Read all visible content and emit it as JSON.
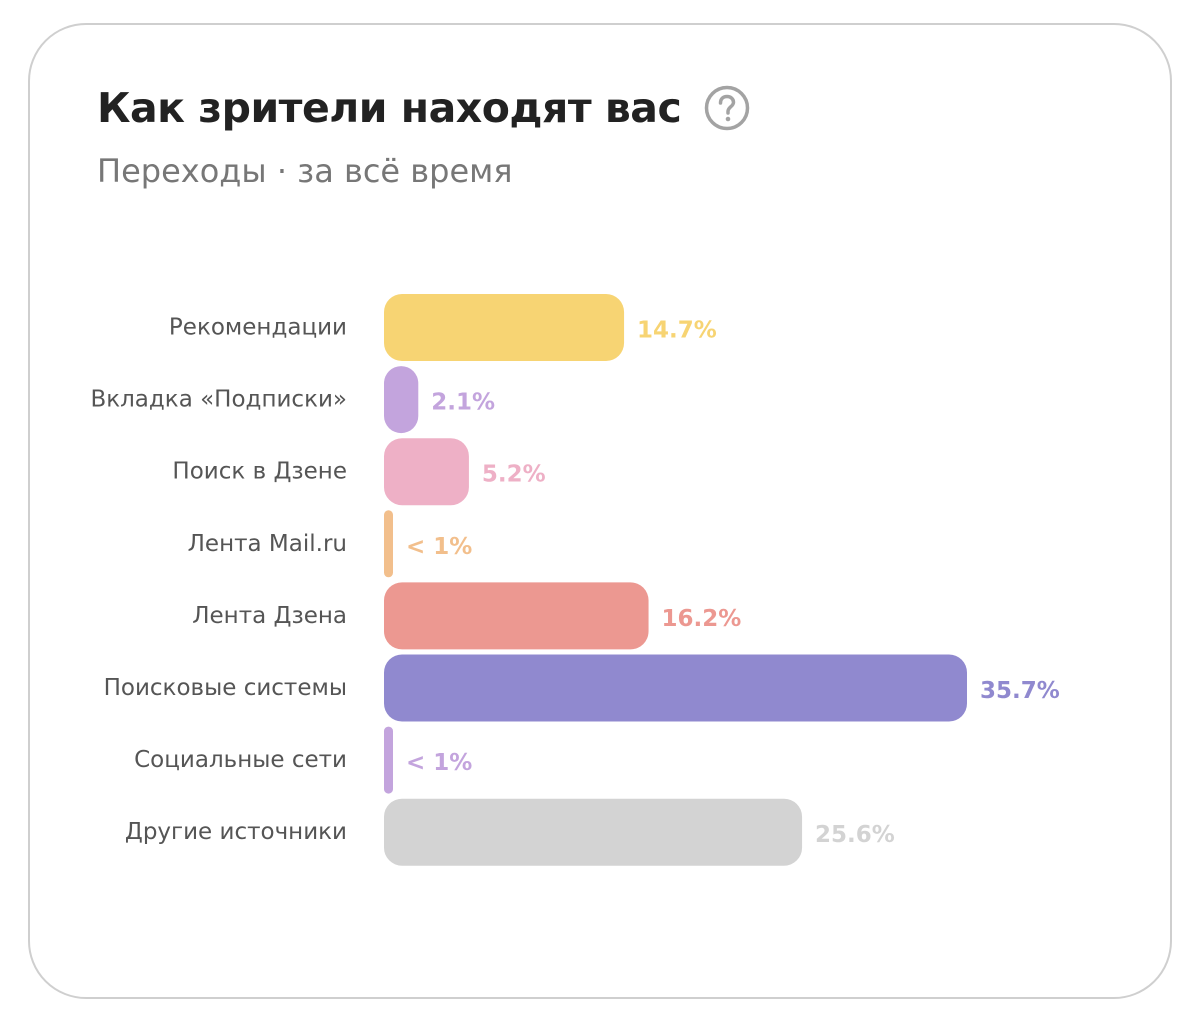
{
  "header": {
    "title": "Как зрители находят вас",
    "help_icon": "question-circle-icon"
  },
  "subtitle": "Переходы · за всё время",
  "chart_data": {
    "type": "bar",
    "orientation": "horizontal",
    "title": "Как зрители находят вас",
    "subtitle": "Переходы · за всё время",
    "xlabel": "",
    "ylabel": "",
    "xlim": [
      0,
      35.7
    ],
    "grid": false,
    "categories": [
      "Рекомендации",
      "Вкладка «Подписки»",
      "Поиск в Дзене",
      "Лента Mail.ru",
      "Лента Дзена",
      "Поисковые системы",
      "Социальные сети",
      "Другие источники"
    ],
    "values": [
      14.7,
      2.1,
      5.2,
      0.2,
      16.2,
      35.7,
      0.2,
      25.6
    ],
    "value_labels": [
      "14.7%",
      "2.1%",
      "5.2%",
      "< 1%",
      "16.2%",
      "35.7%",
      "< 1%",
      "25.6%"
    ],
    "colors": [
      "#f7d473",
      "#c3a4dd",
      "#eeb0c6",
      "#f2bf8c",
      "#ec9891",
      "#9089cf",
      "#c3a4dd",
      "#d3d3d3"
    ]
  }
}
